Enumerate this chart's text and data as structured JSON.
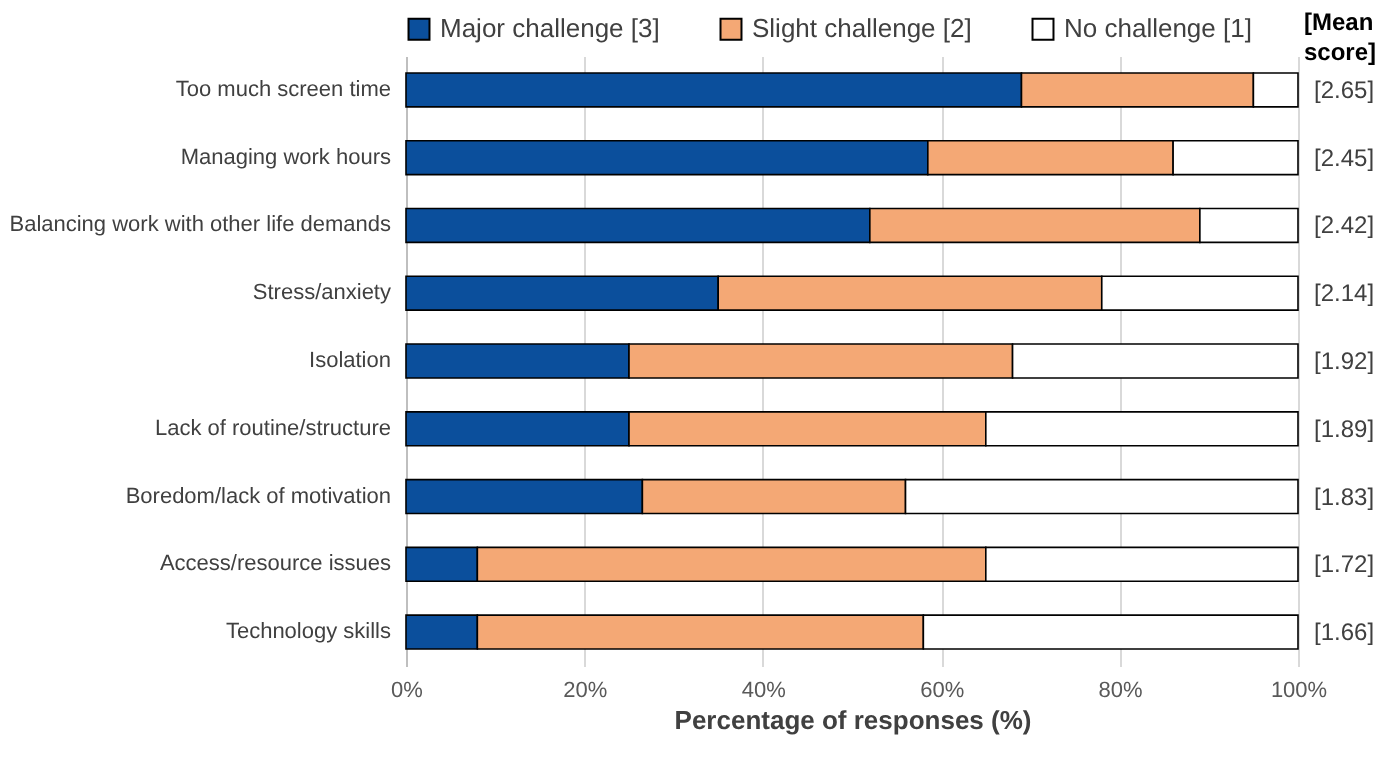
{
  "chart_data": {
    "type": "bar",
    "orientation": "horizontal",
    "stacked": true,
    "xlabel": "Percentage of responses (%)",
    "categories": [
      "Too much screen time",
      "Managing work hours",
      "Balancing work with other life demands",
      "Stress/anxiety",
      "Isolation",
      "Lack of routine/structure",
      "Boredom/lack of motivation",
      "Access/resource issues",
      "Technology skills"
    ],
    "series": [
      {
        "name": "Major challenge [3]",
        "color": "#0b4f9c",
        "values": [
          69,
          58.5,
          52,
          35,
          25,
          25,
          26.5,
          8,
          8
        ]
      },
      {
        "name": "Slight challenge [2]",
        "color": "#f4a875",
        "values": [
          26,
          27.5,
          37,
          43,
          43,
          40,
          29.5,
          57,
          50
        ]
      },
      {
        "name": "No challenge [1]",
        "color": "#ffffff",
        "values": [
          5,
          14,
          11,
          22,
          32,
          35,
          44,
          35,
          42
        ]
      }
    ],
    "xlim": [
      0,
      100
    ],
    "xticks": [
      {
        "value": 0,
        "label": "0%"
      },
      {
        "value": 20,
        "label": "20%"
      },
      {
        "value": 40,
        "label": "40%"
      },
      {
        "value": 60,
        "label": "60%"
      },
      {
        "value": 80,
        "label": "80%"
      },
      {
        "value": 100,
        "label": "100%"
      }
    ],
    "grid": "x",
    "legend": "top",
    "annotations": [
      "[Mean score]",
      "[2.65]",
      "[2.45]",
      "[2.42]",
      "[2.14]",
      "[1.92]",
      "[1.89]",
      "[1.83]",
      "[1.72]",
      "[1.66]"
    ]
  }
}
